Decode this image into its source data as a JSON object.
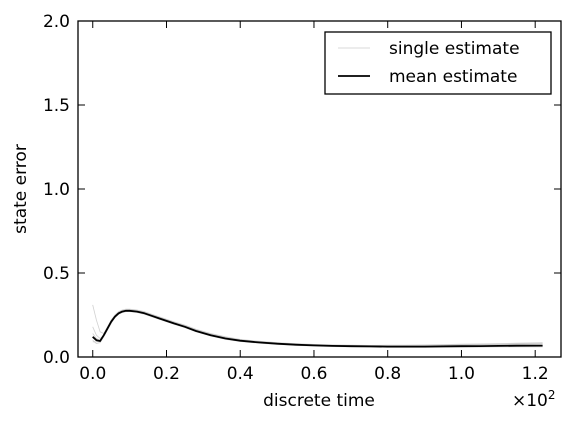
{
  "chart_data": {
    "type": "line",
    "xlabel": "discrete time",
    "ylabel": "state error",
    "x_multiplier_label": "×10",
    "x_multiplier_exponent": "2",
    "xlim": [
      -0.04,
      1.27
    ],
    "ylim": [
      0.0,
      2.0
    ],
    "xticks": [
      0.0,
      0.2,
      0.4,
      0.6,
      0.8,
      1.0,
      1.2
    ],
    "xtick_labels": [
      "0.0",
      "0.2",
      "0.4",
      "0.6",
      "0.8",
      "1.0",
      "1.2"
    ],
    "yticks": [
      0.0,
      0.5,
      1.0,
      1.5,
      2.0
    ],
    "ytick_labels": [
      "0.0",
      "0.5",
      "1.0",
      "1.5",
      "2.0"
    ],
    "grid": false,
    "legend_position": "top-right",
    "series": [
      {
        "name": "mean estimate",
        "color": "#000000",
        "x": [
          0.0,
          0.01,
          0.02,
          0.03,
          0.04,
          0.05,
          0.06,
          0.07,
          0.08,
          0.09,
          0.1,
          0.12,
          0.14,
          0.16,
          0.18,
          0.2,
          0.22,
          0.25,
          0.28,
          0.32,
          0.36,
          0.4,
          0.45,
          0.5,
          0.55,
          0.6,
          0.65,
          0.7,
          0.75,
          0.8,
          0.85,
          0.9,
          0.95,
          1.0,
          1.05,
          1.1,
          1.15,
          1.22
        ],
        "y": [
          0.12,
          0.1,
          0.095,
          0.13,
          0.17,
          0.21,
          0.24,
          0.26,
          0.27,
          0.275,
          0.275,
          0.27,
          0.26,
          0.245,
          0.23,
          0.215,
          0.2,
          0.18,
          0.155,
          0.13,
          0.11,
          0.097,
          0.087,
          0.079,
          0.073,
          0.069,
          0.066,
          0.064,
          0.063,
          0.062,
          0.062,
          0.062,
          0.063,
          0.064,
          0.065,
          0.066,
          0.067,
          0.068
        ]
      }
    ],
    "single_estimates": {
      "name": "single estimate",
      "color": "#bdbdbd",
      "x": [
        0.0,
        0.01,
        0.02,
        0.03,
        0.04,
        0.05,
        0.06,
        0.07,
        0.08,
        0.09,
        0.1,
        0.12,
        0.14,
        0.16,
        0.18,
        0.2,
        0.22,
        0.25,
        0.28,
        0.32,
        0.36,
        0.4,
        0.45,
        0.5,
        0.55,
        0.6,
        0.65,
        0.7,
        0.75,
        0.8,
        0.85,
        0.9,
        0.95,
        1.0,
        1.05,
        1.1,
        1.15,
        1.22
      ],
      "runs": [
        [
          0.31,
          0.22,
          0.15,
          0.14,
          0.18,
          0.22,
          0.25,
          0.27,
          0.28,
          0.285,
          0.285,
          0.28,
          0.27,
          0.255,
          0.24,
          0.225,
          0.21,
          0.19,
          0.165,
          0.14,
          0.12,
          0.105,
          0.094,
          0.085,
          0.079,
          0.075,
          0.072,
          0.07,
          0.069,
          0.07,
          0.071,
          0.072,
          0.074,
          0.076,
          0.078,
          0.08,
          0.082,
          0.085
        ],
        [
          0.18,
          0.13,
          0.11,
          0.13,
          0.17,
          0.21,
          0.245,
          0.265,
          0.275,
          0.28,
          0.28,
          0.275,
          0.265,
          0.25,
          0.235,
          0.22,
          0.205,
          0.185,
          0.16,
          0.135,
          0.115,
          0.1,
          0.09,
          0.082,
          0.076,
          0.072,
          0.069,
          0.067,
          0.066,
          0.066,
          0.067,
          0.068,
          0.069,
          0.071,
          0.073,
          0.074,
          0.076,
          0.078
        ],
        [
          0.1,
          0.08,
          0.085,
          0.12,
          0.16,
          0.2,
          0.235,
          0.255,
          0.265,
          0.27,
          0.27,
          0.265,
          0.255,
          0.24,
          0.225,
          0.21,
          0.195,
          0.175,
          0.15,
          0.125,
          0.105,
          0.092,
          0.082,
          0.075,
          0.069,
          0.065,
          0.062,
          0.06,
          0.059,
          0.058,
          0.058,
          0.058,
          0.058,
          0.059,
          0.059,
          0.06,
          0.06,
          0.061
        ],
        [
          0.14,
          0.11,
          0.1,
          0.135,
          0.175,
          0.215,
          0.245,
          0.265,
          0.275,
          0.28,
          0.282,
          0.277,
          0.267,
          0.252,
          0.237,
          0.222,
          0.207,
          0.187,
          0.162,
          0.137,
          0.117,
          0.102,
          0.091,
          0.083,
          0.077,
          0.073,
          0.07,
          0.068,
          0.067,
          0.067,
          0.068,
          0.069,
          0.07,
          0.072,
          0.074,
          0.076,
          0.078,
          0.08
        ],
        [
          0.09,
          0.09,
          0.09,
          0.125,
          0.165,
          0.205,
          0.235,
          0.255,
          0.265,
          0.27,
          0.272,
          0.267,
          0.257,
          0.242,
          0.227,
          0.212,
          0.197,
          0.177,
          0.152,
          0.127,
          0.107,
          0.094,
          0.084,
          0.077,
          0.071,
          0.067,
          0.064,
          0.062,
          0.061,
          0.06,
          0.06,
          0.061,
          0.061,
          0.062,
          0.063,
          0.064,
          0.064,
          0.065
        ]
      ]
    },
    "legend": [
      {
        "label": "single estimate",
        "color": "#d9d9d9"
      },
      {
        "label": "mean estimate",
        "color": "#000000"
      }
    ]
  }
}
